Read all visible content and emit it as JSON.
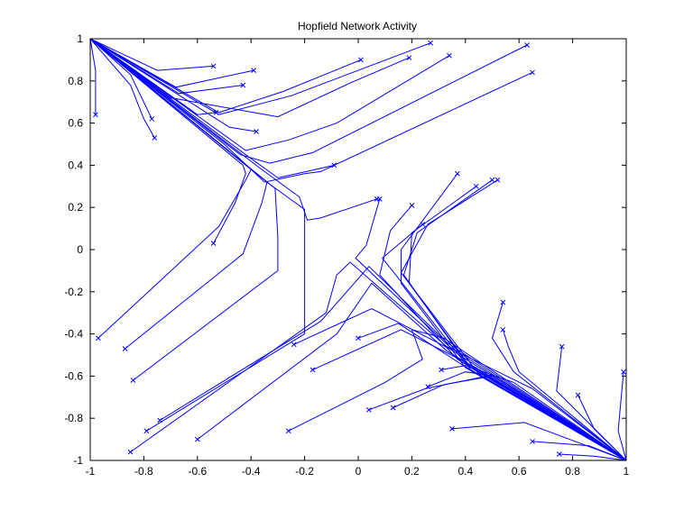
{
  "chart_data": {
    "type": "line",
    "title": "Hopfield Network Activity",
    "xlabel": "",
    "ylabel": "",
    "xlim": [
      -1,
      1
    ],
    "ylim": [
      -1,
      1
    ],
    "xticks": [
      -1,
      -0.8,
      -0.6,
      -0.4,
      -0.2,
      0,
      0.2,
      0.4,
      0.6,
      0.8,
      1
    ],
    "yticks": [
      -1,
      -0.8,
      -0.6,
      -0.4,
      -0.2,
      0,
      0.2,
      0.4,
      0.6,
      0.8,
      1
    ],
    "xtick_labels": [
      "-1",
      "-0.8",
      "-0.6",
      "-0.4",
      "-0.2",
      "0",
      "0.2",
      "0.4",
      "0.6",
      "0.8",
      "1"
    ],
    "ytick_labels": [
      "-1",
      "-0.8",
      "-0.6",
      "-0.4",
      "-0.2",
      "0",
      "0.2",
      "0.4",
      "0.6",
      "0.8",
      "1"
    ],
    "grid": false,
    "line_color": "#0000ff",
    "marker": "x",
    "series": [
      {
        "values": [
          [
            -0.54,
            0.87
          ],
          [
            -0.75,
            0.85
          ],
          [
            -1,
            1
          ]
        ]
      },
      {
        "values": [
          [
            -0.39,
            0.85
          ],
          [
            -0.68,
            0.77
          ],
          [
            -1,
            1
          ]
        ]
      },
      {
        "values": [
          [
            -0.43,
            0.78
          ],
          [
            -0.67,
            0.74
          ],
          [
            -1,
            1
          ]
        ]
      },
      {
        "values": [
          [
            0.01,
            0.9
          ],
          [
            -0.28,
            0.75
          ],
          [
            -0.52,
            0.65
          ],
          [
            -1,
            1
          ]
        ]
      },
      {
        "values": [
          [
            0.19,
            0.91
          ],
          [
            -0.03,
            0.79
          ],
          [
            -0.3,
            0.63
          ],
          [
            -0.7,
            0.72
          ],
          [
            -1,
            1
          ]
        ]
      },
      {
        "values": [
          [
            0.27,
            0.98
          ],
          [
            -0.25,
            0.73
          ],
          [
            -0.52,
            0.64
          ],
          [
            -1,
            1
          ]
        ]
      },
      {
        "values": [
          [
            0.34,
            0.92
          ],
          [
            -0.08,
            0.6
          ],
          [
            -0.26,
            0.52
          ],
          [
            -0.42,
            0.47
          ],
          [
            -1,
            1
          ]
        ]
      },
      {
        "values": [
          [
            0.63,
            0.97
          ],
          [
            -0.17,
            0.46
          ],
          [
            -0.33,
            0.41
          ],
          [
            -0.44,
            0.45
          ],
          [
            -1,
            1
          ]
        ]
      },
      {
        "values": [
          [
            0.65,
            0.84
          ],
          [
            -0.14,
            0.37
          ],
          [
            -0.2,
            0.36
          ],
          [
            -0.35,
            0.32
          ],
          [
            -0.5,
            0.5
          ],
          [
            -1,
            1
          ]
        ]
      },
      {
        "values": [
          [
            -0.98,
            0.64
          ],
          [
            -0.98,
            0.85
          ],
          [
            -1,
            1
          ]
        ]
      },
      {
        "values": [
          [
            -0.77,
            0.62
          ],
          [
            -0.85,
            0.83
          ],
          [
            -1,
            1
          ]
        ]
      },
      {
        "values": [
          [
            -0.76,
            0.53
          ],
          [
            -0.8,
            0.62
          ],
          [
            -0.85,
            0.78
          ],
          [
            -1,
            1
          ]
        ]
      },
      {
        "values": [
          [
            -0.38,
            0.56
          ],
          [
            -0.48,
            0.58
          ],
          [
            -1,
            1
          ]
        ]
      },
      {
        "values": [
          [
            -0.53,
            0.65
          ],
          [
            -0.6,
            0.64
          ],
          [
            -1,
            1
          ]
        ]
      },
      {
        "values": [
          [
            -0.09,
            0.4
          ],
          [
            -0.16,
            0.38
          ],
          [
            -0.3,
            0.34
          ],
          [
            -0.42,
            0.45
          ],
          [
            -1,
            1
          ]
        ]
      },
      {
        "values": [
          [
            0.07,
            0.24
          ],
          [
            -0.14,
            0.15
          ],
          [
            -0.19,
            0.14
          ],
          [
            -0.22,
            0.25
          ],
          [
            -0.36,
            0.38
          ],
          [
            -1,
            1
          ]
        ]
      },
      {
        "values": [
          [
            -0.54,
            0.03
          ],
          [
            -0.46,
            0.22
          ],
          [
            -0.42,
            0.36
          ],
          [
            -0.43,
            0.4
          ],
          [
            -1,
            1
          ]
        ]
      },
      {
        "values": [
          [
            -0.97,
            -0.42
          ],
          [
            -0.52,
            0.11
          ],
          [
            -0.42,
            0.33
          ],
          [
            -0.4,
            0.38
          ],
          [
            -1,
            1
          ]
        ]
      },
      {
        "values": [
          [
            -0.87,
            -0.47
          ],
          [
            -0.43,
            -0.02
          ],
          [
            -0.36,
            0.22
          ],
          [
            -0.34,
            0.32
          ],
          [
            -1,
            1
          ]
        ]
      },
      {
        "values": [
          [
            -0.84,
            -0.62
          ],
          [
            -0.3,
            -0.1
          ],
          [
            -0.3,
            0.06
          ],
          [
            -0.31,
            0.29
          ],
          [
            -1,
            1
          ]
        ]
      },
      {
        "values": [
          [
            -0.79,
            -0.86
          ],
          [
            -0.2,
            -0.4
          ],
          [
            -0.2,
            0.19
          ],
          [
            -0.33,
            0.31
          ],
          [
            -1,
            1
          ]
        ]
      },
      {
        "values": [
          [
            -0.85,
            -0.96
          ],
          [
            -0.12,
            -0.3
          ],
          [
            -0.08,
            -0.12
          ],
          [
            -0.03,
            -0.06
          ],
          [
            0.33,
            -0.46
          ],
          [
            0.65,
            -0.66
          ],
          [
            1,
            -1
          ]
        ]
      },
      {
        "values": [
          [
            -0.74,
            -0.81
          ],
          [
            -0.14,
            -0.34
          ],
          [
            0.04,
            -0.08
          ],
          [
            0.33,
            -0.44
          ],
          [
            1,
            -1
          ]
        ]
      },
      {
        "values": [
          [
            -0.6,
            -0.9
          ],
          [
            -0.08,
            -0.4
          ],
          [
            0.05,
            -0.16
          ],
          [
            0.33,
            -0.48
          ],
          [
            1,
            -1
          ]
        ]
      },
      {
        "values": [
          [
            -0.26,
            -0.86
          ],
          [
            0.1,
            -0.63
          ],
          [
            0.24,
            -0.52
          ],
          [
            0.2,
            -0.38
          ],
          [
            0.32,
            -0.42
          ],
          [
            1,
            -1
          ]
        ]
      },
      {
        "values": [
          [
            -0.24,
            -0.45
          ],
          [
            0.05,
            -0.28
          ],
          [
            0.34,
            -0.47
          ],
          [
            1,
            -1
          ]
        ]
      },
      {
        "values": [
          [
            -0.17,
            -0.57
          ],
          [
            0.16,
            -0.38
          ],
          [
            0.44,
            -0.56
          ],
          [
            1,
            -1
          ]
        ]
      },
      {
        "values": [
          [
            0.0,
            -0.42
          ],
          [
            0.15,
            -0.35
          ],
          [
            0.38,
            -0.54
          ],
          [
            1,
            -1
          ]
        ]
      },
      {
        "values": [
          [
            0.08,
            0.24
          ],
          [
            0.03,
            0.02
          ],
          [
            -0.01,
            -0.04
          ],
          [
            0.34,
            -0.46
          ],
          [
            1,
            -1
          ]
        ]
      },
      {
        "values": [
          [
            0.2,
            0.21
          ],
          [
            0.12,
            0.09
          ],
          [
            0.08,
            -0.12
          ],
          [
            0.37,
            -0.52
          ],
          [
            1,
            -1
          ]
        ]
      },
      {
        "values": [
          [
            0.24,
            0.12
          ],
          [
            0.09,
            -0.04
          ],
          [
            0.14,
            -0.12
          ],
          [
            0.4,
            -0.54
          ],
          [
            1,
            -1
          ]
        ]
      },
      {
        "values": [
          [
            0.37,
            0.36
          ],
          [
            0.16,
            0.0
          ],
          [
            0.16,
            -0.16
          ],
          [
            0.4,
            -0.56
          ],
          [
            1,
            -1
          ]
        ]
      },
      {
        "values": [
          [
            0.44,
            0.3
          ],
          [
            0.2,
            0.08
          ],
          [
            0.19,
            -0.16
          ],
          [
            0.42,
            -0.56
          ],
          [
            1,
            -1
          ]
        ]
      },
      {
        "values": [
          [
            0.5,
            0.33
          ],
          [
            0.22,
            0.08
          ],
          [
            0.17,
            -0.12
          ],
          [
            0.42,
            -0.57
          ],
          [
            1,
            -1
          ]
        ]
      },
      {
        "values": [
          [
            0.52,
            0.33
          ],
          [
            0.26,
            0.12
          ],
          [
            0.16,
            -0.11
          ],
          [
            0.45,
            -0.59
          ],
          [
            1,
            -1
          ]
        ]
      },
      {
        "values": [
          [
            0.54,
            -0.25
          ],
          [
            0.5,
            -0.42
          ],
          [
            0.58,
            -0.58
          ],
          [
            1,
            -1
          ]
        ]
      },
      {
        "values": [
          [
            0.54,
            -0.38
          ],
          [
            0.56,
            -0.46
          ],
          [
            0.6,
            -0.58
          ],
          [
            1,
            -1
          ]
        ]
      },
      {
        "values": [
          [
            0.31,
            -0.57
          ],
          [
            0.4,
            -0.55
          ],
          [
            0.58,
            -0.63
          ],
          [
            1,
            -1
          ]
        ]
      },
      {
        "values": [
          [
            0.26,
            -0.65
          ],
          [
            0.4,
            -0.58
          ],
          [
            0.51,
            -0.6
          ],
          [
            1,
            -1
          ]
        ]
      },
      {
        "values": [
          [
            0.04,
            -0.76
          ],
          [
            0.25,
            -0.66
          ],
          [
            0.48,
            -0.6
          ],
          [
            1,
            -1
          ]
        ]
      },
      {
        "values": [
          [
            0.13,
            -0.75
          ],
          [
            0.32,
            -0.64
          ],
          [
            0.5,
            -0.6
          ],
          [
            1,
            -1
          ]
        ]
      },
      {
        "values": [
          [
            0.35,
            -0.85
          ],
          [
            0.62,
            -0.82
          ],
          [
            1,
            -1
          ]
        ]
      },
      {
        "values": [
          [
            0.76,
            -0.46
          ],
          [
            0.74,
            -0.67
          ],
          [
            1,
            -1
          ]
        ]
      },
      {
        "values": [
          [
            0.82,
            -0.69
          ],
          [
            0.88,
            -0.85
          ],
          [
            1,
            -1
          ]
        ]
      },
      {
        "values": [
          [
            0.99,
            -0.58
          ],
          [
            0.97,
            -0.86
          ],
          [
            1,
            -1
          ]
        ]
      },
      {
        "values": [
          [
            0.65,
            -0.91
          ],
          [
            0.86,
            -0.93
          ],
          [
            1,
            -1
          ]
        ]
      },
      {
        "values": [
          [
            0.75,
            -0.97
          ],
          [
            0.88,
            -0.98
          ],
          [
            1,
            -1
          ]
        ]
      }
    ]
  }
}
